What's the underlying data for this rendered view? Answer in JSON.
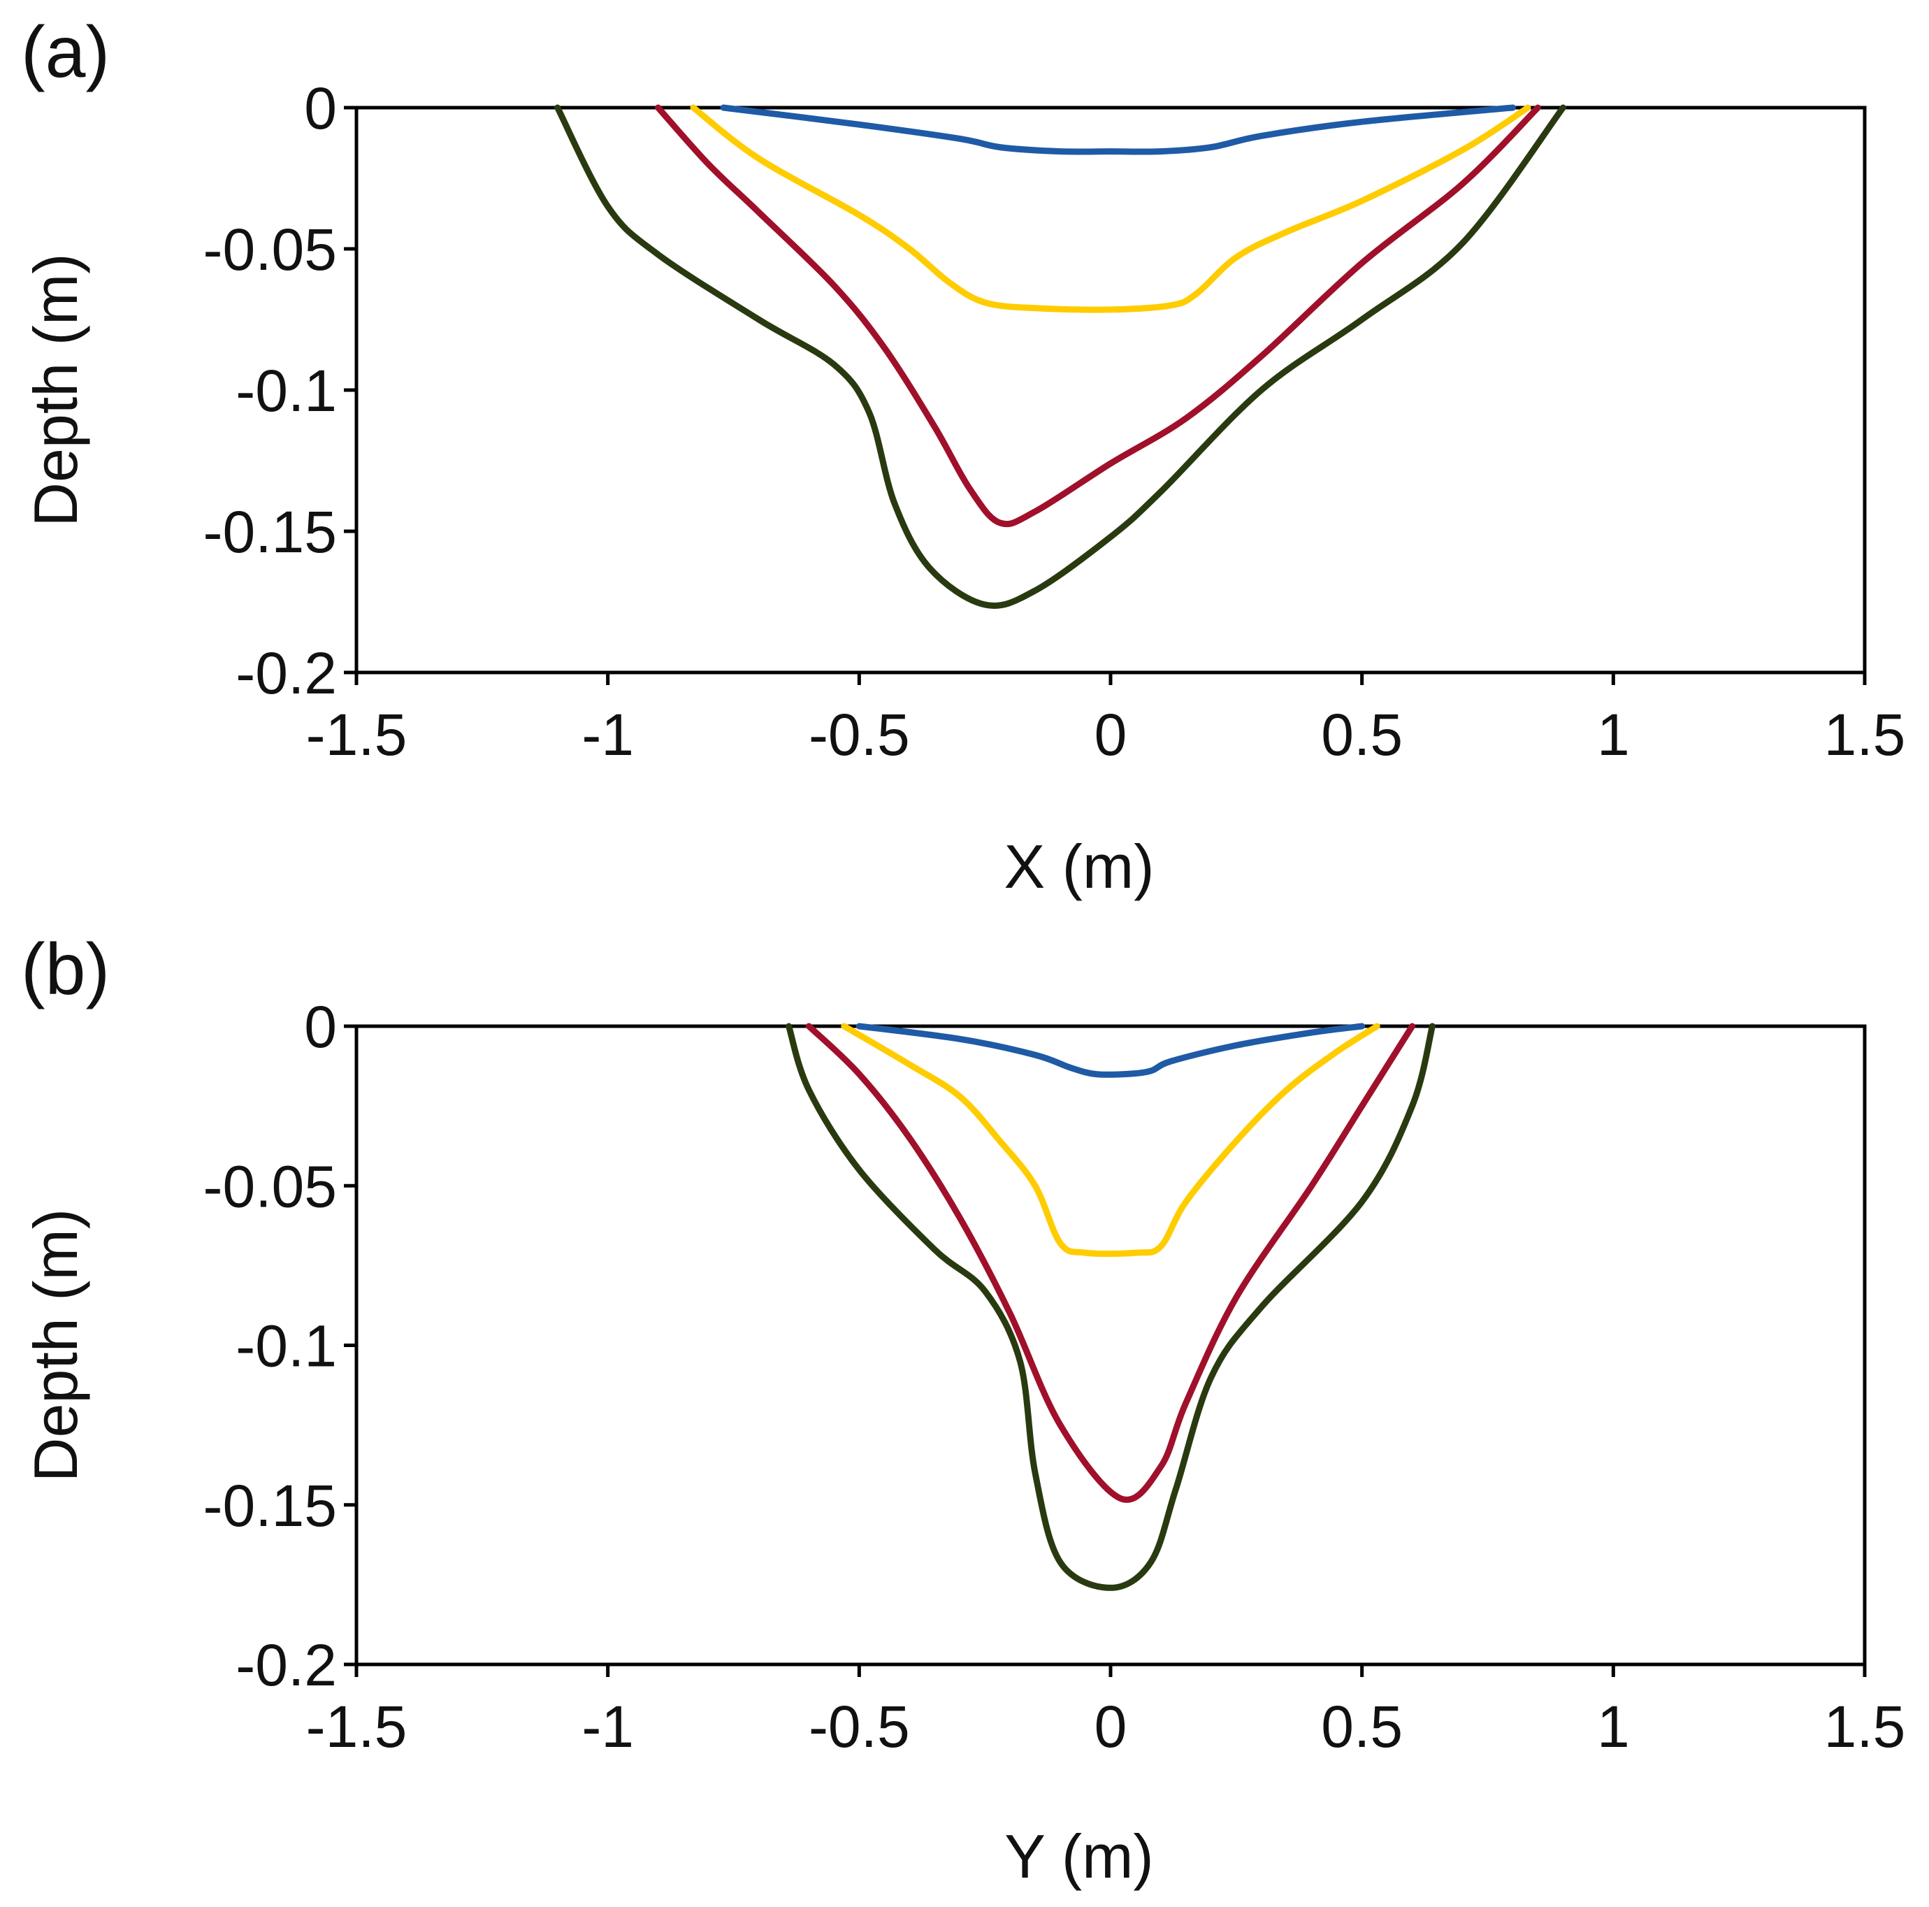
{
  "chart_data": [
    {
      "panel_label": "(a)",
      "type": "line",
      "xlabel": "X (m)",
      "ylabel": "Depth (m)",
      "xlim": [
        -1.5,
        1.5
      ],
      "ylim": [
        -0.2,
        0
      ],
      "xticks": [
        "-1.5",
        "-1",
        "-0.5",
        "0",
        "0.5",
        "1",
        "1.5"
      ],
      "yticks": [
        "0",
        "-0.05",
        "-0.1",
        "-0.15",
        "-0.2"
      ],
      "grid": false,
      "series": [
        {
          "color": "#1f5aa6",
          "points": [
            [
              -0.77,
              0
            ],
            [
              -0.5,
              -0.006
            ],
            [
              -0.3,
              -0.011
            ],
            [
              -0.22,
              -0.014
            ],
            [
              -0.1,
              -0.0155
            ],
            [
              0,
              -0.0155
            ],
            [
              0.1,
              -0.0155
            ],
            [
              0.2,
              -0.014
            ],
            [
              0.3,
              -0.01
            ],
            [
              0.5,
              -0.005
            ],
            [
              0.8,
              0
            ]
          ]
        },
        {
          "color": "#ffcc00",
          "points": [
            [
              -0.83,
              0
            ],
            [
              -0.7,
              -0.018
            ],
            [
              -0.5,
              -0.038
            ],
            [
              -0.4,
              -0.05
            ],
            [
              -0.32,
              -0.062
            ],
            [
              -0.25,
              -0.069
            ],
            [
              -0.15,
              -0.071
            ],
            [
              0,
              -0.0715
            ],
            [
              0.12,
              -0.07
            ],
            [
              0.17,
              -0.066
            ],
            [
              0.25,
              -0.053
            ],
            [
              0.35,
              -0.044
            ],
            [
              0.5,
              -0.033
            ],
            [
              0.7,
              -0.015
            ],
            [
              0.83,
              0
            ]
          ]
        },
        {
          "color": "#a0102a",
          "points": [
            [
              -0.9,
              0
            ],
            [
              -0.8,
              -0.02
            ],
            [
              -0.7,
              -0.037
            ],
            [
              -0.55,
              -0.063
            ],
            [
              -0.45,
              -0.085
            ],
            [
              -0.35,
              -0.113
            ],
            [
              -0.28,
              -0.135
            ],
            [
              -0.22,
              -0.147
            ],
            [
              -0.15,
              -0.143
            ],
            [
              0,
              -0.126
            ],
            [
              0.15,
              -0.11
            ],
            [
              0.3,
              -0.088
            ],
            [
              0.5,
              -0.055
            ],
            [
              0.7,
              -0.027
            ],
            [
              0.85,
              0
            ]
          ]
        },
        {
          "color": "#2a3a10",
          "points": [
            [
              -1.1,
              0
            ],
            [
              -1.0,
              -0.035
            ],
            [
              -0.9,
              -0.052
            ],
            [
              -0.7,
              -0.075
            ],
            [
              -0.55,
              -0.091
            ],
            [
              -0.48,
              -0.108
            ],
            [
              -0.43,
              -0.14
            ],
            [
              -0.36,
              -0.163
            ],
            [
              -0.25,
              -0.176
            ],
            [
              -0.15,
              -0.171
            ],
            [
              0,
              -0.152
            ],
            [
              0.1,
              -0.136
            ],
            [
              0.3,
              -0.1
            ],
            [
              0.5,
              -0.075
            ],
            [
              0.7,
              -0.048
            ],
            [
              0.9,
              0
            ]
          ]
        }
      ]
    },
    {
      "panel_label": "(b)",
      "type": "line",
      "xlabel": "Y (m)",
      "ylabel": "Depth (m)",
      "xlim": [
        -1.5,
        1.5
      ],
      "ylim": [
        -0.2,
        0
      ],
      "xticks": [
        "-1.5",
        "-1",
        "-0.5",
        "0",
        "0.5",
        "1",
        "1.5"
      ],
      "yticks": [
        "0",
        "-0.05",
        "-0.1",
        "-0.15",
        "-0.2"
      ],
      "grid": false,
      "series": [
        {
          "color": "#1f5aa6",
          "points": [
            [
              -0.5,
              0
            ],
            [
              -0.3,
              -0.004
            ],
            [
              -0.15,
              -0.009
            ],
            [
              -0.08,
              -0.013
            ],
            [
              -0.03,
              -0.015
            ],
            [
              0.03,
              -0.015
            ],
            [
              0.08,
              -0.014
            ],
            [
              0.12,
              -0.011
            ],
            [
              0.25,
              -0.006
            ],
            [
              0.4,
              -0.002
            ],
            [
              0.5,
              0
            ]
          ]
        },
        {
          "color": "#ffcc00",
          "points": [
            [
              -0.53,
              0
            ],
            [
              -0.4,
              -0.012
            ],
            [
              -0.3,
              -0.022
            ],
            [
              -0.22,
              -0.036
            ],
            [
              -0.15,
              -0.05
            ],
            [
              -0.1,
              -0.068
            ],
            [
              -0.05,
              -0.071
            ],
            [
              0.05,
              -0.071
            ],
            [
              0.1,
              -0.069
            ],
            [
              0.15,
              -0.055
            ],
            [
              0.25,
              -0.036
            ],
            [
              0.35,
              -0.02
            ],
            [
              0.45,
              -0.008
            ],
            [
              0.53,
              0
            ]
          ]
        },
        {
          "color": "#a0102a",
          "points": [
            [
              -0.6,
              0
            ],
            [
              -0.5,
              -0.015
            ],
            [
              -0.4,
              -0.035
            ],
            [
              -0.3,
              -0.06
            ],
            [
              -0.2,
              -0.09
            ],
            [
              -0.1,
              -0.125
            ],
            [
              0.02,
              -0.148
            ],
            [
              0.1,
              -0.138
            ],
            [
              0.15,
              -0.118
            ],
            [
              0.25,
              -0.085
            ],
            [
              0.4,
              -0.05
            ],
            [
              0.5,
              -0.025
            ],
            [
              0.6,
              0
            ]
          ]
        },
        {
          "color": "#2a3a10",
          "points": [
            [
              -0.64,
              0
            ],
            [
              -0.6,
              -0.02
            ],
            [
              -0.5,
              -0.045
            ],
            [
              -0.35,
              -0.07
            ],
            [
              -0.25,
              -0.083
            ],
            [
              -0.18,
              -0.105
            ],
            [
              -0.15,
              -0.14
            ],
            [
              -0.1,
              -0.168
            ],
            [
              0,
              -0.176
            ],
            [
              0.08,
              -0.168
            ],
            [
              0.13,
              -0.145
            ],
            [
              0.2,
              -0.11
            ],
            [
              0.3,
              -0.088
            ],
            [
              0.5,
              -0.055
            ],
            [
              0.6,
              -0.025
            ],
            [
              0.64,
              0
            ]
          ]
        }
      ]
    }
  ]
}
